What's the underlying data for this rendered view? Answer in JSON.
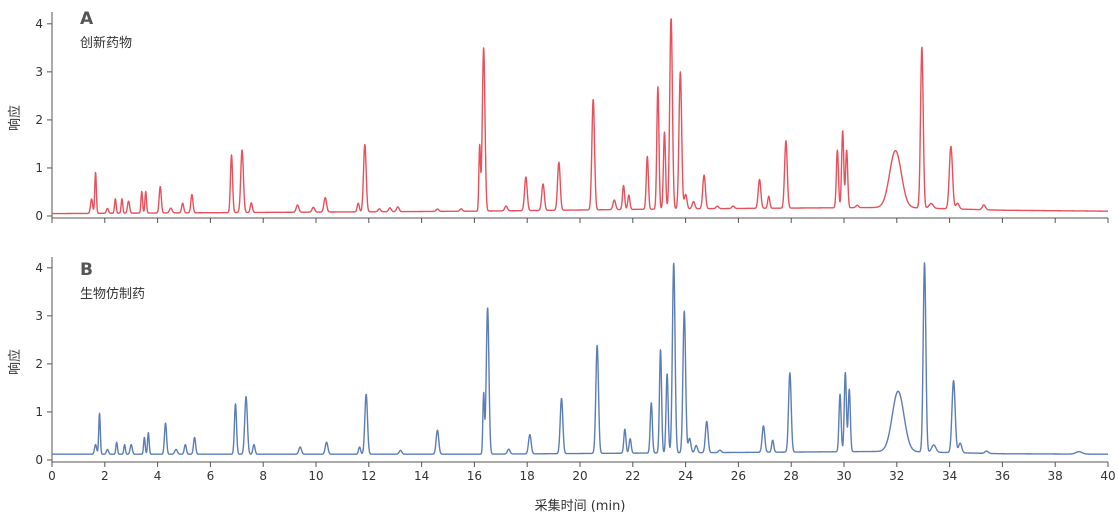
{
  "chart_data": [
    {
      "type": "line",
      "panel_letter": "A",
      "title": "创新药物",
      "ylabel": "响应",
      "xlabel": "",
      "xlim": [
        0,
        40
      ],
      "ylim": [
        0,
        4.1
      ],
      "xticks": [
        0,
        2,
        4,
        6,
        8,
        10,
        12,
        14,
        16,
        18,
        20,
        22,
        24,
        26,
        28,
        30,
        32,
        34,
        36,
        38,
        40
      ],
      "yticks": [
        0,
        1,
        2,
        3,
        4
      ],
      "grid": false,
      "color": "#e8505b",
      "baseline": [
        [
          0,
          0.05
        ],
        [
          16,
          0.1
        ],
        [
          24,
          0.15
        ],
        [
          32,
          0.18
        ],
        [
          36,
          0.12
        ],
        [
          40,
          0.1
        ]
      ],
      "series": [
        {
          "peaks": [
            [
              1.5,
              0.3,
              0.04
            ],
            [
              1.65,
              0.85,
              0.03
            ],
            [
              2.1,
              0.1,
              0.04
            ],
            [
              2.4,
              0.3,
              0.03
            ],
            [
              2.65,
              0.3,
              0.03
            ],
            [
              2.9,
              0.25,
              0.04
            ],
            [
              3.4,
              0.45,
              0.03
            ],
            [
              3.55,
              0.45,
              0.03
            ],
            [
              4.1,
              0.55,
              0.04
            ],
            [
              4.5,
              0.1,
              0.05
            ],
            [
              4.95,
              0.2,
              0.04
            ],
            [
              5.3,
              0.38,
              0.04
            ],
            [
              6.8,
              1.2,
              0.04
            ],
            [
              7.2,
              1.3,
              0.05
            ],
            [
              7.55,
              0.2,
              0.04
            ],
            [
              9.3,
              0.15,
              0.05
            ],
            [
              9.9,
              0.1,
              0.05
            ],
            [
              10.35,
              0.3,
              0.05
            ],
            [
              11.6,
              0.18,
              0.04
            ],
            [
              11.85,
              1.4,
              0.05
            ],
            [
              12.4,
              0.06,
              0.05
            ],
            [
              12.8,
              0.08,
              0.05
            ],
            [
              13.1,
              0.1,
              0.05
            ],
            [
              14.6,
              0.05,
              0.05
            ],
            [
              15.5,
              0.05,
              0.05
            ],
            [
              16.2,
              1.35,
              0.03
            ],
            [
              16.35,
              3.4,
              0.05
            ],
            [
              17.2,
              0.1,
              0.05
            ],
            [
              17.95,
              0.7,
              0.05
            ],
            [
              18.6,
              0.55,
              0.05
            ],
            [
              19.2,
              1.0,
              0.05
            ],
            [
              20.5,
              2.3,
              0.05
            ],
            [
              21.3,
              0.2,
              0.05
            ],
            [
              21.65,
              0.5,
              0.04
            ],
            [
              21.85,
              0.3,
              0.04
            ],
            [
              22.55,
              1.1,
              0.04
            ],
            [
              22.95,
              2.55,
              0.04
            ],
            [
              23.2,
              1.6,
              0.04
            ],
            [
              23.45,
              4.0,
              0.05
            ],
            [
              23.8,
              2.85,
              0.05
            ],
            [
              24.0,
              0.3,
              0.05
            ],
            [
              24.3,
              0.15,
              0.05
            ],
            [
              24.7,
              0.7,
              0.05
            ],
            [
              25.2,
              0.05,
              0.05
            ],
            [
              25.8,
              0.05,
              0.05
            ],
            [
              26.8,
              0.6,
              0.05
            ],
            [
              27.15,
              0.25,
              0.04
            ],
            [
              27.8,
              1.4,
              0.05
            ],
            [
              29.75,
              1.2,
              0.04
            ],
            [
              29.95,
              1.6,
              0.04
            ],
            [
              30.1,
              1.2,
              0.04
            ],
            [
              30.5,
              0.05,
              0.05
            ],
            [
              31.95,
              1.18,
              0.22
            ],
            [
              32.95,
              3.35,
              0.05
            ],
            [
              33.3,
              0.1,
              0.08
            ],
            [
              34.05,
              1.3,
              0.06
            ],
            [
              34.3,
              0.12,
              0.06
            ],
            [
              35.3,
              0.1,
              0.06
            ]
          ]
        }
      ]
    },
    {
      "type": "line",
      "panel_letter": "B",
      "title": "生物仿制药",
      "ylabel": "响应",
      "xlabel": "采集时间 (min)",
      "xlim": [
        0,
        40
      ],
      "ylim": [
        0,
        4.1
      ],
      "xticks": [
        0,
        2,
        4,
        6,
        8,
        10,
        12,
        14,
        16,
        18,
        20,
        22,
        24,
        26,
        28,
        30,
        32,
        34,
        36,
        38,
        40
      ],
      "yticks": [
        0,
        1,
        2,
        3,
        4
      ],
      "grid": false,
      "color": "#5b7db8",
      "baseline": [
        [
          0,
          0.12
        ],
        [
          16,
          0.12
        ],
        [
          24,
          0.15
        ],
        [
          32,
          0.18
        ],
        [
          36,
          0.13
        ],
        [
          40,
          0.12
        ]
      ],
      "series": [
        {
          "peaks": [
            [
              1.65,
              0.2,
              0.04
            ],
            [
              1.8,
              0.85,
              0.03
            ],
            [
              2.1,
              0.1,
              0.04
            ],
            [
              2.45,
              0.25,
              0.03
            ],
            [
              2.75,
              0.2,
              0.03
            ],
            [
              3.0,
              0.2,
              0.04
            ],
            [
              3.5,
              0.35,
              0.03
            ],
            [
              3.65,
              0.45,
              0.03
            ],
            [
              4.3,
              0.65,
              0.04
            ],
            [
              4.7,
              0.1,
              0.05
            ],
            [
              5.05,
              0.2,
              0.04
            ],
            [
              5.4,
              0.35,
              0.04
            ],
            [
              6.95,
              1.05,
              0.04
            ],
            [
              7.35,
              1.2,
              0.05
            ],
            [
              7.65,
              0.2,
              0.04
            ],
            [
              9.4,
              0.15,
              0.05
            ],
            [
              10.4,
              0.25,
              0.05
            ],
            [
              11.65,
              0.15,
              0.04
            ],
            [
              11.9,
              1.25,
              0.05
            ],
            [
              13.2,
              0.08,
              0.05
            ],
            [
              14.6,
              0.5,
              0.05
            ],
            [
              16.35,
              1.25,
              0.03
            ],
            [
              16.5,
              3.05,
              0.05
            ],
            [
              17.3,
              0.1,
              0.05
            ],
            [
              18.1,
              0.4,
              0.05
            ],
            [
              19.3,
              1.15,
              0.05
            ],
            [
              20.65,
              2.25,
              0.05
            ],
            [
              21.7,
              0.5,
              0.04
            ],
            [
              21.9,
              0.3,
              0.04
            ],
            [
              22.7,
              1.05,
              0.04
            ],
            [
              23.05,
              2.15,
              0.04
            ],
            [
              23.3,
              1.65,
              0.04
            ],
            [
              23.55,
              3.95,
              0.05
            ],
            [
              23.95,
              2.95,
              0.05
            ],
            [
              24.15,
              0.3,
              0.05
            ],
            [
              24.4,
              0.15,
              0.05
            ],
            [
              24.8,
              0.65,
              0.05
            ],
            [
              25.3,
              0.05,
              0.05
            ],
            [
              26.95,
              0.55,
              0.05
            ],
            [
              27.3,
              0.25,
              0.04
            ],
            [
              27.95,
              1.65,
              0.05
            ],
            [
              29.85,
              1.2,
              0.04
            ],
            [
              30.05,
              1.65,
              0.04
            ],
            [
              30.2,
              1.3,
              0.04
            ],
            [
              32.05,
              1.25,
              0.22
            ],
            [
              33.05,
              3.95,
              0.05
            ],
            [
              33.4,
              0.15,
              0.08
            ],
            [
              34.15,
              1.5,
              0.06
            ],
            [
              34.4,
              0.2,
              0.06
            ],
            [
              35.4,
              0.05,
              0.06
            ],
            [
              38.9,
              0.05,
              0.12
            ]
          ]
        }
      ]
    }
  ]
}
